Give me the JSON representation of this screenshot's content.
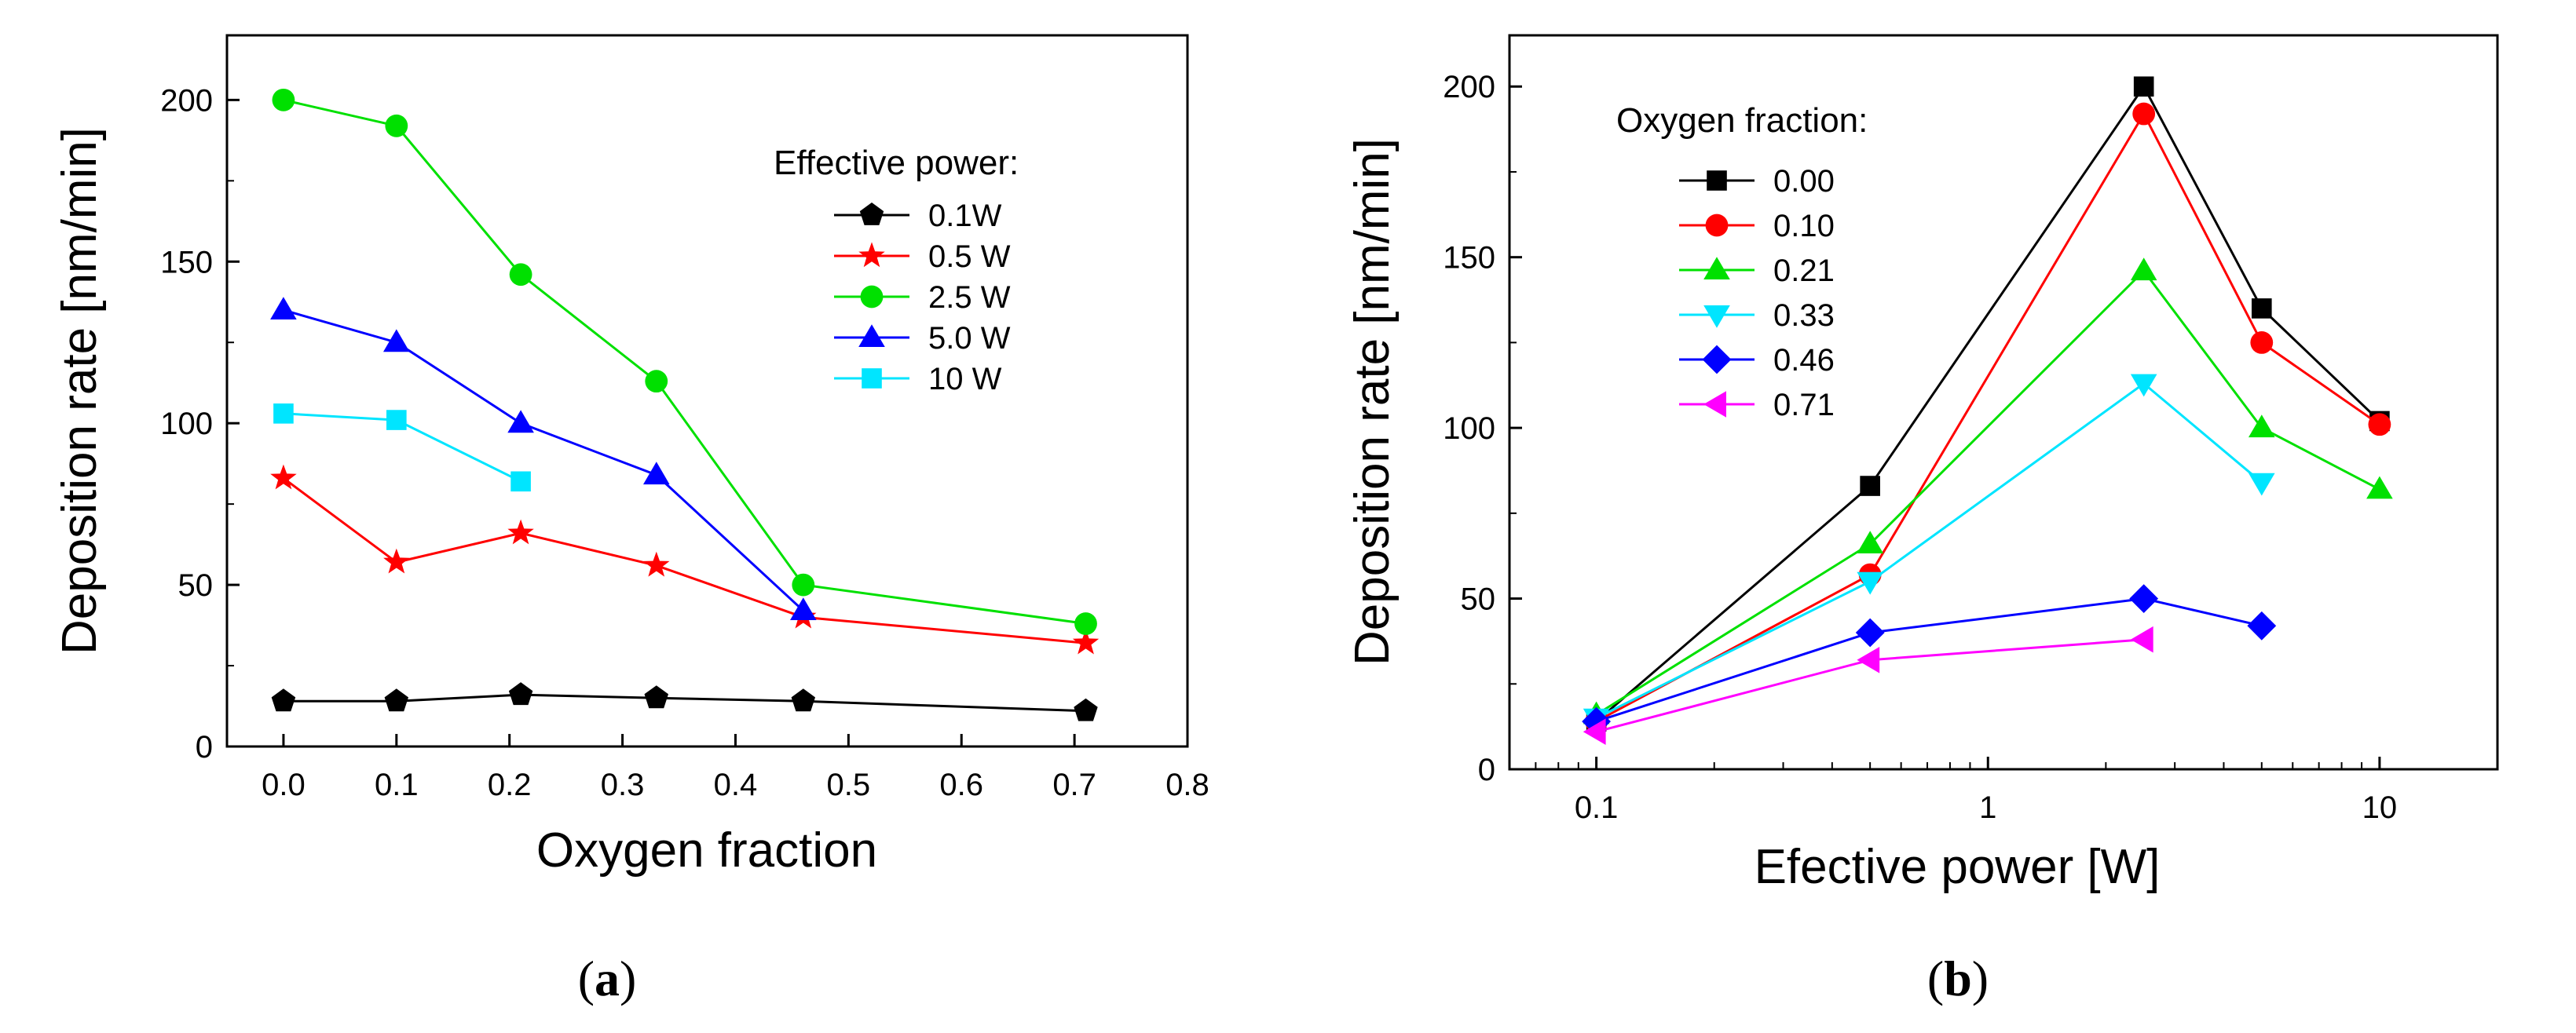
{
  "chart_data": [
    {
      "type": "line",
      "panel_label": "a",
      "xlabel": "Oxygen fraction",
      "ylabel": "Deposition rate [nm/min]",
      "xlim": [
        -0.05,
        0.8
      ],
      "ylim": [
        0,
        220
      ],
      "xscale": "linear",
      "xticks": [
        0.0,
        0.1,
        0.2,
        0.3,
        0.4,
        0.5,
        0.6,
        0.7,
        0.8
      ],
      "xtick_labels": [
        "0.0",
        "0.1",
        "0.2",
        "0.3",
        "0.4",
        "0.5",
        "0.6",
        "0.7",
        "0.8"
      ],
      "yticks": [
        0,
        50,
        100,
        150,
        200
      ],
      "ytick_labels": [
        "0",
        "50",
        "100",
        "150",
        "200"
      ],
      "legend_title": "Effective power:",
      "legend_position": "top-right",
      "series": [
        {
          "name": "0.1W",
          "color": "#000000",
          "marker": "pentagon",
          "x": [
            0.0,
            0.1,
            0.21,
            0.33,
            0.46,
            0.71
          ],
          "values": [
            14,
            14,
            16,
            15,
            14,
            11
          ]
        },
        {
          "name": "0.5 W",
          "color": "#ff0000",
          "marker": "star",
          "x": [
            0.0,
            0.1,
            0.21,
            0.33,
            0.46,
            0.71
          ],
          "values": [
            83,
            57,
            66,
            56,
            40,
            32
          ]
        },
        {
          "name": "2.5 W",
          "color": "#00e000",
          "marker": "circle",
          "x": [
            0.0,
            0.1,
            0.21,
            0.33,
            0.46,
            0.71
          ],
          "values": [
            200,
            192,
            146,
            113,
            50,
            38
          ]
        },
        {
          "name": "5.0 W",
          "color": "#0000ff",
          "marker": "triangle-up",
          "x": [
            0.0,
            0.1,
            0.21,
            0.33,
            0.46
          ],
          "values": [
            135,
            125,
            100,
            84,
            42
          ]
        },
        {
          "name": "10 W",
          "color": "#00e5ff",
          "marker": "square",
          "x": [
            0.0,
            0.1,
            0.21
          ],
          "values": [
            103,
            101,
            82
          ]
        }
      ]
    },
    {
      "type": "line",
      "panel_label": "b",
      "xlabel": "Efective power [W]",
      "ylabel": "Deposition rate [nm/min]",
      "xlim": [
        0.06,
        20
      ],
      "ylim": [
        0,
        215
      ],
      "xscale": "log",
      "xticks": [
        0.1,
        1,
        10
      ],
      "xtick_labels": [
        "0.1",
        "1",
        "10"
      ],
      "yticks": [
        0,
        50,
        100,
        150,
        200
      ],
      "ytick_labels": [
        "0",
        "50",
        "100",
        "150",
        "200"
      ],
      "legend_title": "Oxygen fraction:",
      "legend_position": "top-left",
      "series": [
        {
          "name": "0.00",
          "color": "#000000",
          "marker": "square",
          "x": [
            0.1,
            0.5,
            2.5,
            5.0,
            10
          ],
          "values": [
            14,
            83,
            200,
            135,
            102
          ]
        },
        {
          "name": "0.10",
          "color": "#ff0000",
          "marker": "circle",
          "x": [
            0.1,
            0.5,
            2.5,
            5.0,
            10
          ],
          "values": [
            14,
            57,
            192,
            125,
            101
          ]
        },
        {
          "name": "0.21",
          "color": "#00e000",
          "marker": "triangle-up",
          "x": [
            0.1,
            0.5,
            2.5,
            5.0,
            10
          ],
          "values": [
            16,
            66,
            146,
            100,
            82
          ]
        },
        {
          "name": "0.33",
          "color": "#00e5ff",
          "marker": "triangle-down",
          "x": [
            0.1,
            0.5,
            2.5,
            5.0
          ],
          "values": [
            15,
            55,
            113,
            84
          ]
        },
        {
          "name": "0.46",
          "color": "#0000ff",
          "marker": "diamond",
          "x": [
            0.1,
            0.5,
            2.5,
            5.0
          ],
          "values": [
            14,
            40,
            50,
            42
          ]
        },
        {
          "name": "0.71",
          "color": "#ff00ff",
          "marker": "triangle-left",
          "x": [
            0.1,
            0.5,
            2.5
          ],
          "values": [
            11,
            32,
            38
          ]
        }
      ]
    }
  ]
}
